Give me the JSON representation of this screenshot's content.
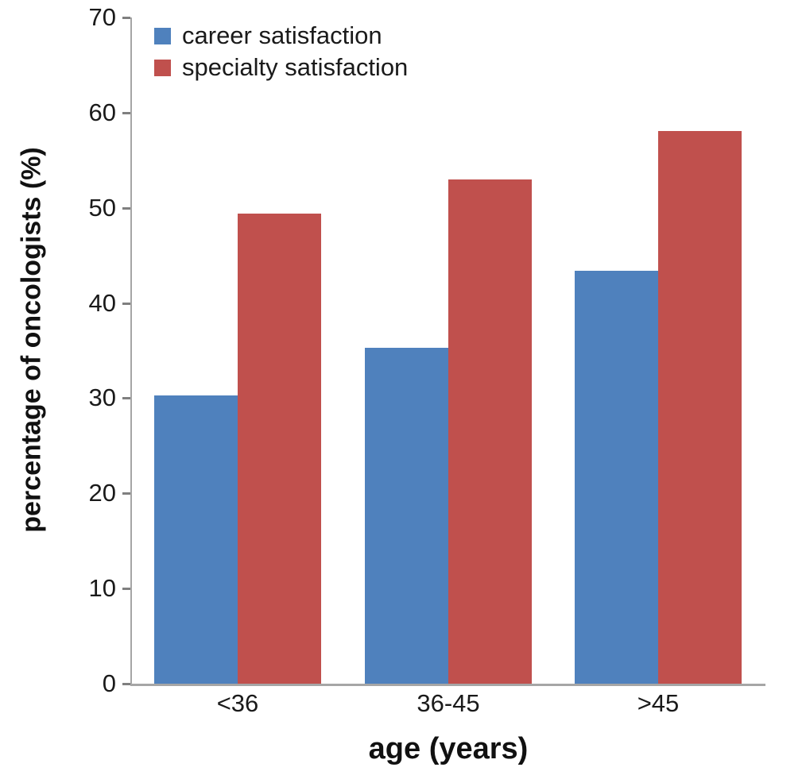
{
  "chart_data": {
    "type": "bar",
    "title": "",
    "xlabel": "age (years)",
    "ylabel": "percentage of oncologists (%)",
    "categories": [
      "<36",
      "36-45",
      ">45"
    ],
    "series": [
      {
        "name": "career satisfaction",
        "color": "#4f81bd",
        "values": [
          30.3,
          35.3,
          43.4
        ]
      },
      {
        "name": "specialty satisfaction",
        "color": "#c0504d",
        "values": [
          49.4,
          53.0,
          58.1
        ]
      }
    ],
    "ylim": [
      0,
      70
    ],
    "yticks": [
      0,
      10,
      20,
      30,
      40,
      50,
      60,
      70
    ],
    "grid": false,
    "legend_position": "top-left-inside",
    "colors": {
      "axis_line": "#a6a6a6",
      "tick_mark": "#7f7f7f",
      "text": "#1a1a1a"
    }
  }
}
